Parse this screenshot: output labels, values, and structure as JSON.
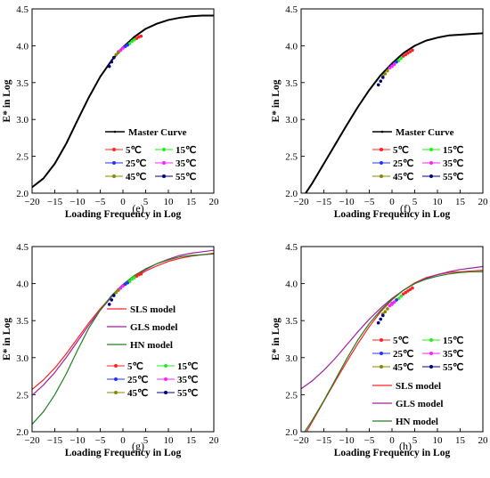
{
  "chart_data": [
    {
      "type": "line",
      "panel_label": "(e)",
      "xlabel": "Loading Frequency in Log",
      "ylabel": "E* in Log",
      "xlim": [
        -20,
        20
      ],
      "ylim": [
        2.0,
        4.5
      ],
      "xticks": [
        -20,
        -15,
        -10,
        -5,
        0,
        5,
        10,
        15,
        20
      ],
      "yticks": [
        2.0,
        2.5,
        3.0,
        3.5,
        4.0,
        4.5
      ],
      "legend_position": "bottom-right",
      "curves": [
        {
          "name": "Master Curve",
          "color": "#000000",
          "marker": true,
          "x": [
            -20,
            -17.5,
            -15,
            -12.5,
            -10,
            -7.5,
            -5,
            -2.5,
            0,
            2.5,
            5,
            7.5,
            10,
            12.5,
            15,
            17.5,
            20
          ],
          "y": [
            2.08,
            2.2,
            2.4,
            2.67,
            2.99,
            3.3,
            3.58,
            3.8,
            3.98,
            4.12,
            4.23,
            4.3,
            4.35,
            4.38,
            4.4,
            4.41,
            4.41
          ]
        }
      ],
      "temperature_series": [
        {
          "name": "5℃",
          "color": "#ff2222",
          "x": [
            2.5,
            3.0,
            3.5,
            4.0
          ],
          "y": [
            4.08,
            4.1,
            4.12,
            4.13
          ]
        },
        {
          "name": "15℃",
          "color": "#22ee22",
          "x": [
            1.0,
            1.5,
            2.0,
            2.5
          ],
          "y": [
            4.01,
            4.03,
            4.06,
            4.08
          ]
        },
        {
          "name": "25℃",
          "color": "#2233ff",
          "x": [
            -0.5,
            0.0,
            0.5,
            1.0
          ],
          "y": [
            3.94,
            3.97,
            3.99,
            4.01
          ]
        },
        {
          "name": "35℃",
          "color": "#ff22ff",
          "x": [
            -1.0,
            -0.5,
            0.0
          ],
          "y": [
            3.92,
            3.94,
            3.97
          ]
        },
        {
          "name": "45℃",
          "color": "#888800",
          "x": [
            -2.0,
            -1.5,
            -1.0
          ],
          "y": [
            3.84,
            3.88,
            3.91
          ]
        },
        {
          "name": "55℃",
          "color": "#000080",
          "x": [
            -3.0,
            -2.5,
            -2.0
          ],
          "y": [
            3.72,
            3.78,
            3.84
          ]
        }
      ]
    },
    {
      "type": "line",
      "panel_label": "(f)",
      "xlabel": "Loading Frequency in Log",
      "ylabel": "E* in Log",
      "xlim": [
        -20,
        20
      ],
      "ylim": [
        2.0,
        4.5
      ],
      "xticks": [
        -20,
        -15,
        -10,
        -5,
        0,
        5,
        10,
        15,
        20
      ],
      "yticks": [
        2.0,
        2.5,
        3.0,
        3.5,
        4.0,
        4.5
      ],
      "legend_position": "bottom-right",
      "curves": [
        {
          "name": "Master Curve",
          "color": "#000000",
          "marker": true,
          "x": [
            -19,
            -17.5,
            -15,
            -12.5,
            -10,
            -7.5,
            -5,
            -2.5,
            0,
            2.5,
            5,
            7.5,
            10,
            12.5,
            15,
            17.5,
            20
          ],
          "y": [
            2.0,
            2.14,
            2.4,
            2.66,
            2.92,
            3.17,
            3.4,
            3.6,
            3.76,
            3.9,
            4.0,
            4.07,
            4.11,
            4.14,
            4.15,
            4.16,
            4.17
          ]
        }
      ],
      "temperature_series": [
        {
          "name": "5℃",
          "color": "#ff2222",
          "x": [
            2.5,
            3.0,
            3.5,
            4.0,
            4.5
          ],
          "y": [
            3.86,
            3.88,
            3.9,
            3.92,
            3.94
          ]
        },
        {
          "name": "15℃",
          "color": "#22ee22",
          "x": [
            1.0,
            1.5,
            2.0
          ],
          "y": [
            3.78,
            3.8,
            3.83
          ]
        },
        {
          "name": "25℃",
          "color": "#2233ff",
          "x": [
            0.0,
            0.5,
            1.0
          ],
          "y": [
            3.73,
            3.75,
            3.78
          ]
        },
        {
          "name": "35℃",
          "color": "#ff22ff",
          "x": [
            -0.5,
            0.0,
            0.5
          ],
          "y": [
            3.7,
            3.72,
            3.75
          ]
        },
        {
          "name": "45℃",
          "color": "#888800",
          "x": [
            -2.0,
            -1.5,
            -1.0
          ],
          "y": [
            3.59,
            3.62,
            3.66
          ]
        },
        {
          "name": "55℃",
          "color": "#000080",
          "x": [
            -3.0,
            -2.5,
            -2.0
          ],
          "y": [
            3.47,
            3.52,
            3.57
          ]
        }
      ]
    },
    {
      "type": "line",
      "panel_label": "(g)",
      "xlabel": "Loading Frequency in Log",
      "ylabel": "E* in Log",
      "xlim": [
        -20,
        20
      ],
      "ylim": [
        2.0,
        4.5
      ],
      "xticks": [
        -20,
        -15,
        -10,
        -5,
        0,
        5,
        10,
        15,
        20
      ],
      "yticks": [
        2.0,
        2.5,
        3.0,
        3.5,
        4.0,
        4.5
      ],
      "legend_position": "bottom-right",
      "curves": [
        {
          "name": "SLS model",
          "color": "#ff2020",
          "marker": false,
          "x": [
            -20,
            -17.5,
            -15,
            -12.5,
            -10,
            -7.5,
            -5,
            -2.5,
            0,
            2.5,
            5,
            7.5,
            10,
            12.5,
            15,
            17.5,
            20
          ],
          "y": [
            2.57,
            2.7,
            2.86,
            3.05,
            3.26,
            3.47,
            3.66,
            3.83,
            3.97,
            4.08,
            4.17,
            4.24,
            4.3,
            4.34,
            4.37,
            4.39,
            4.41
          ]
        },
        {
          "name": "GLS model",
          "color": "#a020a0",
          "marker": false,
          "x": [
            -20,
            -17.5,
            -15,
            -12.5,
            -10,
            -7.5,
            -5,
            -2.5,
            0,
            2.5,
            5,
            7.5,
            10,
            12.5,
            15,
            17.5,
            20
          ],
          "y": [
            2.49,
            2.63,
            2.8,
            3.0,
            3.22,
            3.44,
            3.64,
            3.82,
            3.97,
            4.09,
            4.19,
            4.27,
            4.33,
            4.38,
            4.41,
            4.43,
            4.45
          ]
        },
        {
          "name": "HN model",
          "color": "#208020",
          "marker": false,
          "x": [
            -20,
            -17.5,
            -15,
            -12.5,
            -10,
            -7.5,
            -5,
            -2.5,
            0,
            2.5,
            5,
            7.5,
            10,
            12.5,
            15,
            17.5,
            20
          ],
          "y": [
            2.1,
            2.27,
            2.5,
            2.78,
            3.1,
            3.4,
            3.64,
            3.84,
            3.99,
            4.11,
            4.2,
            4.27,
            4.32,
            4.36,
            4.38,
            4.39,
            4.4
          ]
        }
      ],
      "temperature_series": [
        {
          "name": "5℃",
          "color": "#ff2222",
          "x": [
            2.5,
            3.0,
            3.5,
            4.0
          ],
          "y": [
            4.08,
            4.1,
            4.12,
            4.13
          ]
        },
        {
          "name": "15℃",
          "color": "#22ee22",
          "x": [
            1.0,
            1.5,
            2.0,
            2.5
          ],
          "y": [
            4.01,
            4.03,
            4.06,
            4.08
          ]
        },
        {
          "name": "25℃",
          "color": "#2233ff",
          "x": [
            -0.5,
            0.0,
            0.5,
            1.0
          ],
          "y": [
            3.94,
            3.97,
            3.99,
            4.01
          ]
        },
        {
          "name": "35℃",
          "color": "#ff22ff",
          "x": [
            -1.0,
            -0.5,
            0.0
          ],
          "y": [
            3.92,
            3.94,
            3.97
          ]
        },
        {
          "name": "45℃",
          "color": "#888800",
          "x": [
            -2.0,
            -1.5,
            -1.0
          ],
          "y": [
            3.84,
            3.88,
            3.91
          ]
        },
        {
          "name": "55℃",
          "color": "#000080",
          "x": [
            -3.0,
            -2.5,
            -2.0
          ],
          "y": [
            3.72,
            3.78,
            3.84
          ]
        }
      ]
    },
    {
      "type": "line",
      "panel_label": "(h)",
      "xlabel": "Loading Frequency in Log",
      "ylabel": "E* in Log",
      "xlim": [
        -20,
        20
      ],
      "ylim": [
        2.0,
        4.5
      ],
      "xticks": [
        -20,
        -15,
        -10,
        -5,
        0,
        5,
        10,
        15,
        20
      ],
      "yticks": [
        2.0,
        2.5,
        3.0,
        3.5,
        4.0,
        4.5
      ],
      "legend_position": "bottom-right",
      "curves": [
        {
          "name": "SLS model",
          "color": "#ff2020",
          "marker": false,
          "x": [
            -18.8,
            -17.5,
            -15,
            -12.5,
            -10,
            -7.5,
            -5,
            -2.5,
            0,
            2.5,
            5,
            7.5,
            10,
            12.5,
            15,
            17.5,
            20
          ],
          "y": [
            2.0,
            2.14,
            2.41,
            2.68,
            2.94,
            3.19,
            3.42,
            3.62,
            3.78,
            3.91,
            4.01,
            4.08,
            4.12,
            4.15,
            4.16,
            4.17,
            4.18
          ]
        },
        {
          "name": "GLS model",
          "color": "#a020a0",
          "marker": false,
          "x": [
            -20,
            -17.5,
            -15,
            -12.5,
            -10,
            -7.5,
            -5,
            -2.5,
            0,
            2.5,
            5,
            7.5,
            10,
            12.5,
            15,
            17.5,
            20
          ],
          "y": [
            2.58,
            2.69,
            2.83,
            2.99,
            3.17,
            3.35,
            3.52,
            3.67,
            3.8,
            3.91,
            4.0,
            4.07,
            4.12,
            4.16,
            4.19,
            4.21,
            4.23
          ]
        },
        {
          "name": "HN model",
          "color": "#208020",
          "marker": false,
          "x": [
            -19.2,
            -17.5,
            -15,
            -12.5,
            -10,
            -7.5,
            -5,
            -2.5,
            0,
            2.5,
            5,
            7.5,
            10,
            12.5,
            15,
            17.5,
            20
          ],
          "y": [
            2.0,
            2.16,
            2.42,
            2.7,
            2.98,
            3.24,
            3.46,
            3.64,
            3.79,
            3.91,
            4.0,
            4.06,
            4.1,
            4.13,
            4.15,
            4.16,
            4.16
          ]
        }
      ],
      "temperature_series": [
        {
          "name": "5℃",
          "color": "#ff2222",
          "x": [
            2.5,
            3.0,
            3.5,
            4.0,
            4.5
          ],
          "y": [
            3.86,
            3.88,
            3.9,
            3.92,
            3.94
          ]
        },
        {
          "name": "15℃",
          "color": "#22ee22",
          "x": [
            1.0,
            1.5,
            2.0
          ],
          "y": [
            3.78,
            3.8,
            3.83
          ]
        },
        {
          "name": "25℃",
          "color": "#2233ff",
          "x": [
            0.0,
            0.5,
            1.0
          ],
          "y": [
            3.73,
            3.75,
            3.78
          ]
        },
        {
          "name": "35℃",
          "color": "#ff22ff",
          "x": [
            -0.5,
            0.0,
            0.5
          ],
          "y": [
            3.7,
            3.72,
            3.75
          ]
        },
        {
          "name": "45℃",
          "color": "#888800",
          "x": [
            -2.0,
            -1.5,
            -1.0
          ],
          "y": [
            3.59,
            3.62,
            3.66
          ]
        },
        {
          "name": "55℃",
          "color": "#000080",
          "x": [
            -3.0,
            -2.5,
            -2.0
          ],
          "y": [
            3.47,
            3.52,
            3.57
          ]
        }
      ]
    }
  ]
}
